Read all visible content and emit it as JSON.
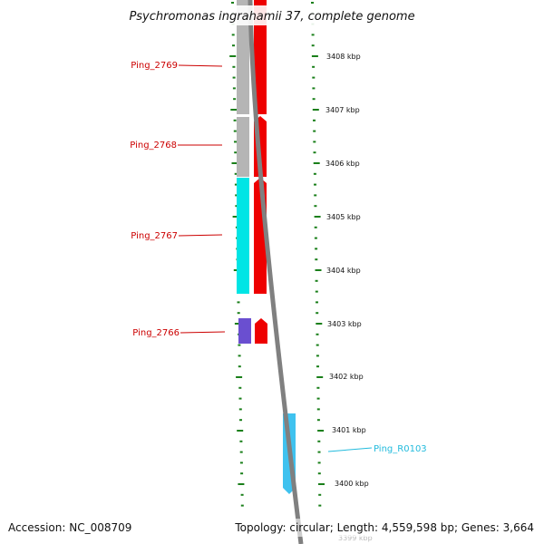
{
  "title": "Psychromonas ingrahamii 37, complete genome",
  "footer": {
    "accession": "Accession: NC_008709",
    "summary": "Topology: circular; Length: 4,559,598 bp; Genes: 3,664"
  },
  "colors": {
    "label_red": "#cc0000",
    "label_cyan": "#22bbdd",
    "tick_green": "#1a7f1a",
    "backbone_gray": "#808080",
    "gene_red": "#ee0000",
    "block_gray": "#b5b5b5",
    "block_cyan": "#00e5e5",
    "block_purple": "#6a4fd0",
    "rna_blue": "#3fc2ef"
  },
  "kbp_labels": [
    "3408 kbp",
    "3407 kbp",
    "3406 kbp",
    "3405 kbp",
    "3404 kbp",
    "3403 kbp",
    "3402 kbp",
    "3401 kbp",
    "3400 kbp",
    "3399 kbp"
  ],
  "genes": [
    {
      "name": "Ping_2769",
      "type": "cds"
    },
    {
      "name": "Ping_2768",
      "type": "cds"
    },
    {
      "name": "Ping_2767",
      "type": "cds"
    },
    {
      "name": "Ping_2766",
      "type": "cds"
    },
    {
      "name": "Ping_R0103",
      "type": "rna"
    }
  ]
}
